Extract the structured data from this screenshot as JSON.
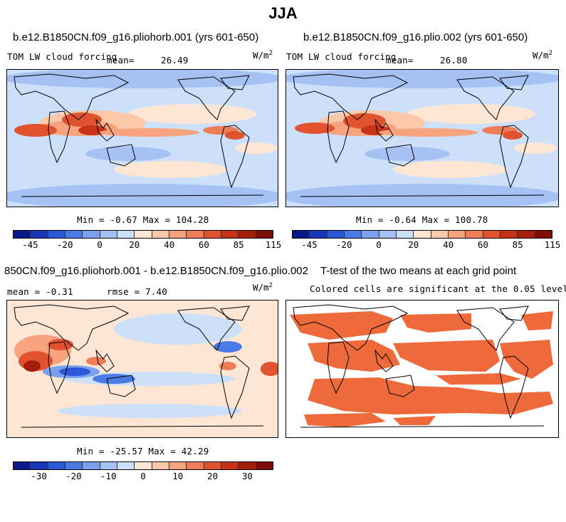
{
  "figure_title": "JJA",
  "panels": [
    {
      "title": "b.e12.B1850CN.f09_g16.pliohorb.001 (yrs 601-650)",
      "left_label": "TOM LW cloud forcing",
      "mean_label": "mean=",
      "mean_value": "26.49",
      "units": "W/m",
      "units_exp": "2",
      "stats": "Min =   -0.67 Max = 104.28"
    },
    {
      "title": "b.e12.B1850CN.f09_g16.plio.002 (yrs 601-650)",
      "left_label": "TOM LW cloud forcing",
      "mean_label": "mean=",
      "mean_value": "26.80",
      "units": "W/m",
      "units_exp": "2",
      "stats": "Min =   -0.64 Max = 100.78"
    },
    {
      "title": "850CN.f09_g16.pliohorb.001 - b.e12.B1850CN.f09_g16.plio.002",
      "mean_text": "mean =   -0.31",
      "rmse_text": "rmse =    7.40",
      "units": "W/m",
      "units_exp": "2",
      "stats": "Min = -25.57 Max =  42.29"
    },
    {
      "title": "T-test of the two means at each grid point",
      "subtitle": "Colored cells are significant at the 0.05 level"
    }
  ],
  "colorbars": {
    "abs_ticks": [
      "-45",
      "-20",
      "0",
      "20",
      "40",
      "60",
      "85",
      "115"
    ],
    "diff_ticks": [
      "-30",
      "-20",
      "-10",
      "0",
      "10",
      "20",
      "30"
    ],
    "colors": [
      "#0a1a8c",
      "#1836b8",
      "#2a58d8",
      "#4a7ae6",
      "#7aa0ee",
      "#a6c2f4",
      "#cde0fa",
      "#fde6d4",
      "#fbc9aa",
      "#f6a37e",
      "#ee7c56",
      "#e0532e",
      "#c83218",
      "#a51e0c",
      "#7f0f06"
    ],
    "diff_colors": [
      "#0a1a8c",
      "#1836b8",
      "#2a58d8",
      "#4a7ae6",
      "#7aa0ee",
      "#a6c2f4",
      "#cde0fa",
      "#fde6d4",
      "#fbc9aa",
      "#f6a37e",
      "#ee7c56",
      "#e0532e",
      "#c83218",
      "#a51e0c",
      "#7f0f06"
    ]
  },
  "ttest_color": "#ee6a3a"
}
